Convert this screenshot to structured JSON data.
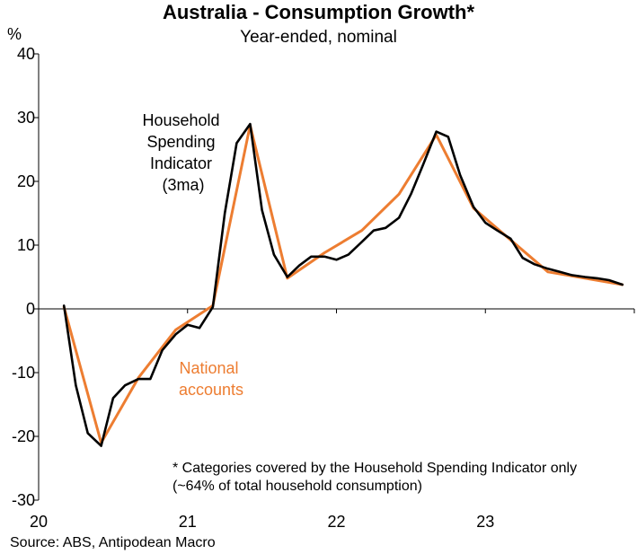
{
  "title": "Australia - Consumption Growth*",
  "subtitle": "Year-ended, nominal",
  "source": "Source: ABS, Antipodean Macro",
  "chart_data": {
    "type": "line",
    "ylabel": "%",
    "ylim": [
      -30,
      40
    ],
    "yticks": [
      40,
      30,
      20,
      10,
      0,
      -10,
      -20,
      -30
    ],
    "ytick_labels": [
      "40",
      "30",
      "20",
      "10",
      "0",
      "-10",
      "-20",
      "-30"
    ],
    "xlim": [
      2020.0,
      2024.0
    ],
    "xticks": [
      2020,
      2021,
      2022,
      2023
    ],
    "xtick_labels": [
      "20",
      "21",
      "22",
      "23"
    ],
    "series": [
      {
        "name": "National accounts",
        "label_lines": [
          "National",
          "accounts"
        ],
        "color": "#ed7d31",
        "x": [
          2020.17,
          2020.42,
          2020.67,
          2020.92,
          2021.17,
          2021.42,
          2021.67,
          2021.92,
          2022.17,
          2022.42,
          2022.67,
          2022.92,
          2023.17,
          2023.42,
          2023.67,
          2023.92
        ],
        "y": [
          0.3,
          -21.0,
          -10.8,
          -3.3,
          0.5,
          28.8,
          4.8,
          8.8,
          12.3,
          18.0,
          27.3,
          15.8,
          10.8,
          5.8,
          4.8,
          3.8
        ]
      },
      {
        "name": "Household Spending Indicator (3ma)",
        "label_lines": [
          "Household",
          "Spending",
          "Indicator",
          "(3ma)"
        ],
        "color": "#000000",
        "x": [
          2020.17,
          2020.25,
          2020.33,
          2020.42,
          2020.5,
          2020.58,
          2020.67,
          2020.75,
          2020.83,
          2020.92,
          2021.0,
          2021.08,
          2021.17,
          2021.25,
          2021.33,
          2021.42,
          2021.5,
          2021.58,
          2021.67,
          2021.75,
          2021.83,
          2021.92,
          2022.0,
          2022.08,
          2022.17,
          2022.25,
          2022.33,
          2022.42,
          2022.5,
          2022.58,
          2022.67,
          2022.75,
          2022.83,
          2022.92,
          2023.0,
          2023.08,
          2023.17,
          2023.25,
          2023.33,
          2023.42,
          2023.5,
          2023.58,
          2023.67,
          2023.75,
          2023.83,
          2023.92
        ],
        "y": [
          0.5,
          -12.0,
          -19.5,
          -21.5,
          -14.0,
          -12.0,
          -11.0,
          -11.0,
          -6.5,
          -4.0,
          -2.5,
          -3.0,
          0.3,
          15.0,
          26.0,
          29.0,
          15.5,
          8.5,
          5.0,
          6.8,
          8.2,
          8.2,
          7.7,
          8.5,
          10.5,
          12.3,
          12.7,
          14.3,
          18.0,
          22.5,
          27.8,
          27.0,
          21.0,
          16.0,
          13.5,
          12.3,
          11.0,
          8.0,
          7.0,
          6.3,
          5.8,
          5.3,
          5.0,
          4.8,
          4.5,
          3.8
        ]
      }
    ],
    "footnote_lines": [
      "* Categories covered by the Household Spending Indicator only",
      "(~64% of total household consumption)"
    ]
  }
}
